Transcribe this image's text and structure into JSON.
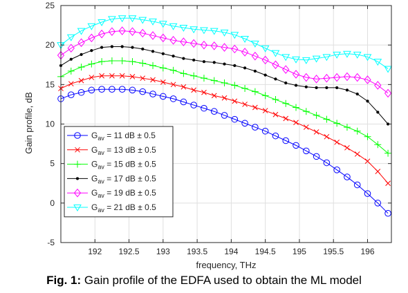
{
  "caption": {
    "label": "Fig. 1:",
    "text": "Gain profile of the EDFA used to obtain the ML model"
  },
  "chart_data": {
    "type": "line",
    "title": "",
    "xlabel": "frequency, THz",
    "ylabel": "Gain profile, dB",
    "xlim": [
      191.5,
      196.35
    ],
    "ylim": [
      -5,
      25
    ],
    "xticks": [
      192,
      192.5,
      193,
      193.5,
      194,
      194.5,
      195,
      195.5,
      196
    ],
    "xtick_labels": [
      "192",
      "192.5",
      "193",
      "193.5",
      "194",
      "194.5",
      "195",
      "195.5",
      "196"
    ],
    "yticks": [
      -5,
      0,
      5,
      10,
      15,
      20,
      25
    ],
    "ytick_labels": [
      "-5",
      "0",
      "5",
      "10",
      "15",
      "20",
      "25"
    ],
    "grid": true,
    "legend_position": "lower-left",
    "x": [
      191.5,
      191.65,
      191.8,
      191.95,
      192.1,
      192.25,
      192.4,
      192.55,
      192.7,
      192.85,
      193.0,
      193.15,
      193.3,
      193.45,
      193.6,
      193.75,
      193.9,
      194.05,
      194.2,
      194.35,
      194.5,
      194.65,
      194.8,
      194.95,
      195.1,
      195.25,
      195.4,
      195.55,
      195.7,
      195.85,
      196.0,
      196.15,
      196.3
    ],
    "series": [
      {
        "name": "G_av = 11 dB ± 0.5",
        "legend_main": "G",
        "legend_sub": "av",
        "legend_rest": " =  11 dB ± 0.5",
        "color": "#0000ff",
        "marker": "circle",
        "values": [
          13.2,
          13.7,
          14.0,
          14.3,
          14.4,
          14.4,
          14.4,
          14.3,
          14.1,
          13.8,
          13.5,
          13.2,
          12.8,
          12.4,
          12.0,
          11.6,
          11.1,
          10.6,
          10.1,
          9.6,
          9.1,
          8.5,
          7.9,
          7.3,
          6.6,
          5.9,
          5.1,
          4.2,
          3.3,
          2.3,
          1.2,
          0.0,
          -1.3
        ]
      },
      {
        "name": "G_av = 13 dB ± 0.5",
        "legend_main": "G",
        "legend_sub": "av",
        "legend_rest": " =  13 dB ± 0.5",
        "color": "#ff0000",
        "marker": "x",
        "values": [
          14.5,
          15.1,
          15.5,
          15.9,
          16.1,
          16.1,
          16.1,
          16.0,
          15.8,
          15.6,
          15.3,
          15.0,
          14.7,
          14.3,
          14.0,
          13.6,
          13.3,
          12.9,
          12.5,
          12.1,
          11.7,
          11.2,
          10.7,
          10.2,
          9.6,
          9.0,
          8.4,
          7.7,
          7.0,
          6.2,
          5.3,
          4.0,
          2.5
        ]
      },
      {
        "name": "G_av = 15 dB ± 0.5",
        "legend_main": "G",
        "legend_sub": "av",
        "legend_rest": " =  15 dB ± 0.5",
        "color": "#00ff00",
        "marker": "plus",
        "values": [
          16.0,
          16.7,
          17.2,
          17.6,
          17.9,
          18.0,
          18.0,
          17.9,
          17.7,
          17.4,
          17.1,
          16.8,
          16.4,
          16.1,
          15.8,
          15.5,
          15.2,
          14.9,
          14.5,
          14.1,
          13.6,
          13.1,
          12.6,
          12.1,
          11.6,
          11.1,
          10.6,
          10.1,
          9.6,
          9.1,
          8.4,
          7.4,
          6.3
        ]
      },
      {
        "name": "G_av = 17 dB ± 0.5",
        "legend_main": "G",
        "legend_sub": "av",
        "legend_rest": " =  17 dB ± 0.5",
        "color": "#000000",
        "marker": "dot",
        "values": [
          17.4,
          18.2,
          18.8,
          19.3,
          19.7,
          19.8,
          19.8,
          19.7,
          19.5,
          19.2,
          18.9,
          18.6,
          18.3,
          18.1,
          17.9,
          17.8,
          17.6,
          17.4,
          17.1,
          16.7,
          16.2,
          15.7,
          15.2,
          14.9,
          14.7,
          14.6,
          14.6,
          14.6,
          14.3,
          13.8,
          12.9,
          11.5,
          10.0
        ]
      },
      {
        "name": "G_av = 19 dB ± 0.5",
        "legend_main": "G",
        "legend_sub": "av",
        "legend_rest": " =  19 dB ± 0.5",
        "color": "#ff00ff",
        "marker": "diamond",
        "values": [
          18.7,
          19.6,
          20.3,
          20.9,
          21.4,
          21.7,
          21.8,
          21.7,
          21.5,
          21.2,
          20.9,
          20.6,
          20.4,
          20.2,
          20.0,
          19.9,
          19.7,
          19.5,
          19.1,
          18.6,
          18.1,
          17.5,
          16.9,
          16.3,
          15.9,
          15.7,
          15.8,
          15.9,
          16.0,
          15.9,
          15.6,
          14.9,
          13.9
        ]
      },
      {
        "name": "G_av = 21 dB ± 0.5",
        "legend_main": "G",
        "legend_sub": "av",
        "legend_rest": " =  21 dB ± 0.5",
        "color": "#00ffff",
        "marker": "triangle-down",
        "values": [
          20.0,
          21.0,
          21.8,
          22.4,
          22.9,
          23.3,
          23.4,
          23.4,
          23.2,
          23.0,
          22.7,
          22.4,
          22.2,
          22.0,
          21.9,
          21.8,
          21.6,
          21.3,
          20.8,
          20.2,
          19.6,
          19.0,
          18.5,
          18.2,
          18.1,
          18.3,
          18.5,
          18.8,
          18.9,
          18.8,
          18.5,
          17.9,
          17.0
        ]
      }
    ]
  }
}
